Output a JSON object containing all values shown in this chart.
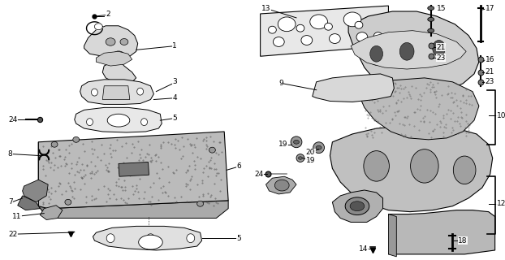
{
  "bg_color": "#ffffff",
  "fig_width": 6.22,
  "fig_height": 3.2,
  "dpi": 100,
  "lc": "#000000",
  "lw": 0.7,
  "fs": 6.5
}
